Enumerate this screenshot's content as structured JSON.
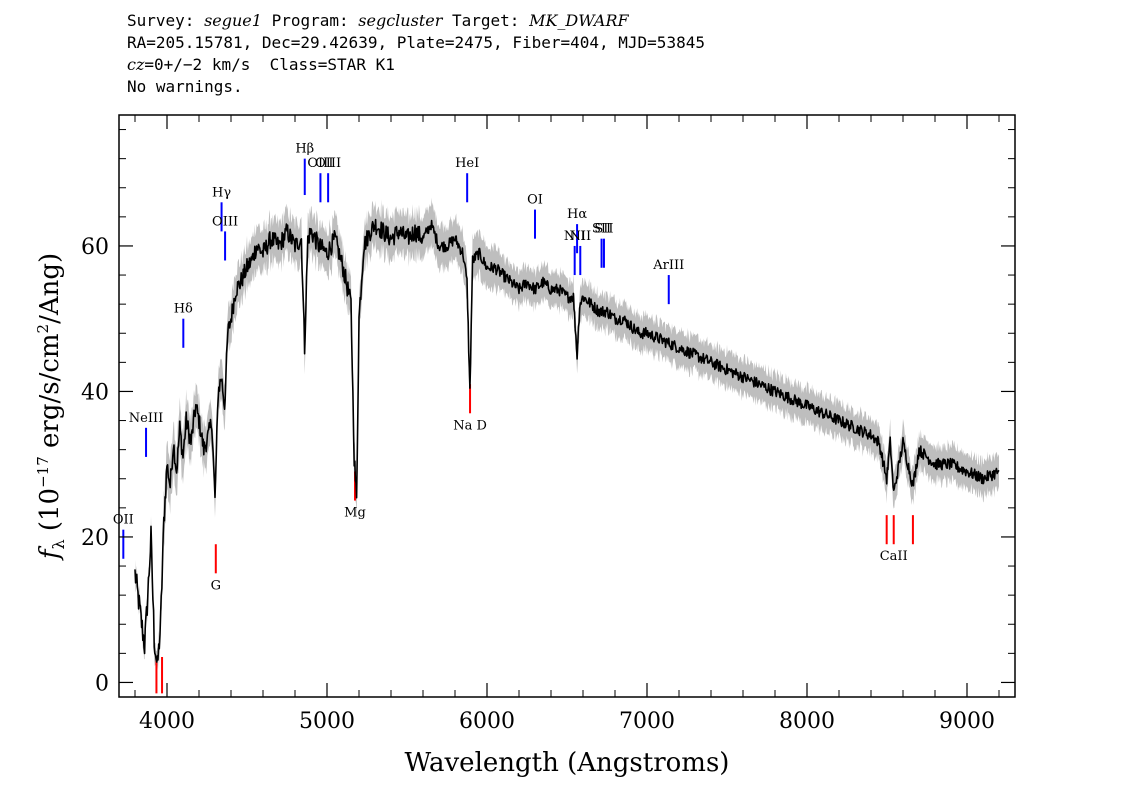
{
  "header": {
    "survey_label": "Survey:",
    "survey": "segue1",
    "program_label": "Program:",
    "program": "segcluster",
    "target_label": "Target:",
    "target": "MK_DWARF",
    "coords": "RA=205.15781, Dec=29.42639, Plate=2475, Fiber=404, MJD=53845",
    "cz_label": "cz",
    "redshift": "=0+/−2 km/s  Class=STAR K1",
    "warnings": "No warnings."
  },
  "chart_data": {
    "type": "line",
    "xlabel": "Wavelength (Angstroms)",
    "ylabel": "fλ (10⁻¹⁷ erg/s/cm²/Ang)",
    "xlim": [
      3700,
      9300
    ],
    "ylim": [
      -2,
      78
    ],
    "x_ticks": [
      "4000",
      "5000",
      "6000",
      "7000",
      "8000",
      "9000"
    ],
    "x_tick_values": [
      4000,
      5000,
      6000,
      7000,
      8000,
      9000
    ],
    "y_ticks": [
      "0",
      "20",
      "40",
      "60"
    ],
    "y_tick_values": [
      0,
      20,
      40,
      60
    ],
    "grid": false,
    "colors": {
      "spectrum": "#000000",
      "error": "#bebebe",
      "emission": "#0000ff",
      "absorption": "#ff0000"
    },
    "series": [
      {
        "name": "flux",
        "x": [
          3800,
          3830,
          3860,
          3880,
          3900,
          3920,
          3940,
          3960,
          3980,
          4000,
          4020,
          4040,
          4060,
          4080,
          4100,
          4120,
          4150,
          4180,
          4200,
          4230,
          4260,
          4280,
          4300,
          4320,
          4340,
          4360,
          4380,
          4400,
          4430,
          4460,
          4500,
          4530,
          4560,
          4600,
          4650,
          4700,
          4750,
          4800,
          4840,
          4860,
          4880,
          4900,
          4950,
          5000,
          5050,
          5100,
          5150,
          5170,
          5185,
          5200,
          5230,
          5270,
          5300,
          5350,
          5400,
          5450,
          5500,
          5550,
          5600,
          5650,
          5700,
          5750,
          5800,
          5850,
          5875,
          5893,
          5910,
          5950,
          6000,
          6050,
          6100,
          6150,
          6200,
          6250,
          6300,
          6350,
          6400,
          6450,
          6500,
          6540,
          6563,
          6580,
          6600,
          6650,
          6700,
          6750,
          6800,
          6850,
          6900,
          6950,
          7000,
          7100,
          7200,
          7300,
          7400,
          7500,
          7600,
          7700,
          7800,
          7900,
          8000,
          8100,
          8200,
          8300,
          8400,
          8450,
          8498,
          8520,
          8542,
          8600,
          8662,
          8700,
          8750,
          8800,
          8900,
          9000,
          9100,
          9200
        ],
        "values": [
          15,
          10,
          5,
          12,
          20,
          6,
          2,
          8,
          22,
          30,
          27,
          33,
          29,
          35,
          31,
          36,
          33,
          38,
          36,
          32,
          34,
          36,
          25,
          40,
          42,
          38,
          48,
          50,
          54,
          55,
          57,
          58,
          60,
          59,
          61,
          60,
          62,
          60,
          61,
          46,
          61,
          62,
          60,
          59,
          61,
          57,
          52,
          31,
          25,
          50,
          60,
          62,
          63,
          62,
          61,
          62,
          61,
          62,
          61,
          63,
          60,
          60,
          61,
          59,
          55,
          40,
          58,
          59,
          57,
          57,
          56,
          55,
          54,
          55,
          54,
          55,
          54,
          54,
          53,
          53,
          45,
          52,
          53,
          52,
          51,
          51,
          50,
          50,
          49,
          48,
          48,
          47,
          46,
          45,
          44,
          43,
          42,
          41,
          40,
          39,
          38,
          37,
          36,
          35,
          34,
          33,
          28,
          33,
          26,
          33,
          27,
          32,
          31,
          30,
          30,
          29,
          28,
          29
        ],
        "error_band": [
          0.8,
          0.8,
          0.8,
          0.8,
          1,
          1,
          1,
          1.5,
          3,
          3,
          3,
          3,
          3,
          3,
          3,
          3,
          2.5,
          2.5,
          2.5,
          2.5,
          2.5,
          2.5,
          2.5,
          2.5,
          2.5,
          2.5,
          2.5,
          2.5,
          2.5,
          2.5,
          2.5,
          2.5,
          2.5,
          2.5,
          2.5,
          2.5,
          2.5,
          2.5,
          2.5,
          2.5,
          2.5,
          2.5,
          2.5,
          2.5,
          2.5,
          2.5,
          2.5,
          2.5,
          2.5,
          2.5,
          2.5,
          2.5,
          2.5,
          2.5,
          2.5,
          2.5,
          2.5,
          2.5,
          2.5,
          2.5,
          2.5,
          2.5,
          2.5,
          2.5,
          2.5,
          2.5,
          2.5,
          2.5,
          2.5,
          2.5,
          2,
          2,
          2,
          2,
          2,
          2,
          2,
          2,
          2,
          2,
          2,
          2,
          2,
          2,
          2,
          2,
          2,
          2,
          2,
          2,
          2,
          2,
          2,
          2,
          2,
          2,
          2,
          2,
          2,
          2,
          2,
          2,
          2,
          2,
          2,
          2,
          2,
          2,
          2,
          2,
          2,
          2,
          2,
          2,
          2,
          2,
          2,
          2
        ]
      }
    ],
    "emission_lines": [
      {
        "label": "OII",
        "wave": 3727,
        "y_top": 21,
        "y_bottom": 17
      },
      {
        "label": "NeIII",
        "wave": 3869,
        "y_top": 35,
        "y_bottom": 31
      },
      {
        "label": "Hδ",
        "wave": 4102,
        "y_top": 50,
        "y_bottom": 46
      },
      {
        "label": "Hγ",
        "wave": 4341,
        "y_top": 66,
        "y_bottom": 62
      },
      {
        "label": "OIII",
        "wave": 4363,
        "y_top": 62,
        "y_bottom": 58
      },
      {
        "label": "Hβ",
        "wave": 4861,
        "y_top": 72,
        "y_bottom": 67
      },
      {
        "label": "OIII",
        "wave": 4959,
        "y_top": 70,
        "y_bottom": 66
      },
      {
        "label": "OIII",
        "wave": 5007,
        "y_top": 70,
        "y_bottom": 66
      },
      {
        "label": "HeI",
        "wave": 5876,
        "y_top": 70,
        "y_bottom": 66
      },
      {
        "label": "OI",
        "wave": 6300,
        "y_top": 65,
        "y_bottom": 61
      },
      {
        "label": "NII",
        "wave": 6548,
        "y_top": 60,
        "y_bottom": 56
      },
      {
        "label": "Hα",
        "wave": 6563,
        "y_top": 63,
        "y_bottom": 59
      },
      {
        "label": "NII",
        "wave": 6583,
        "y_top": 60,
        "y_bottom": 56
      },
      {
        "label": "SII",
        "wave": 6716,
        "y_top": 61,
        "y_bottom": 57
      },
      {
        "label": "SII",
        "wave": 6731,
        "y_top": 61,
        "y_bottom": 57
      },
      {
        "label": "ArIII",
        "wave": 7136,
        "y_top": 56,
        "y_bottom": 52
      }
    ],
    "absorption_lines": [
      {
        "label": "",
        "wave": 3934,
        "y_top": 3.5,
        "y_bottom": -1.5
      },
      {
        "label": "",
        "wave": 3969,
        "y_top": 3.5,
        "y_bottom": -1.5
      },
      {
        "label": "G",
        "wave": 4305,
        "y_top": 19,
        "y_bottom": 15
      },
      {
        "label": "Mg",
        "wave": 5175,
        "y_top": 29,
        "y_bottom": 25
      },
      {
        "label": "Na D",
        "wave": 5894,
        "y_top": 41,
        "y_bottom": 37
      },
      {
        "label": "",
        "wave": 8498,
        "y_top": 23,
        "y_bottom": 19
      },
      {
        "label": "CaII",
        "wave": 8542,
        "y_top": 23,
        "y_bottom": 19
      },
      {
        "label": "",
        "wave": 8662,
        "y_top": 23,
        "y_bottom": 19
      }
    ]
  }
}
